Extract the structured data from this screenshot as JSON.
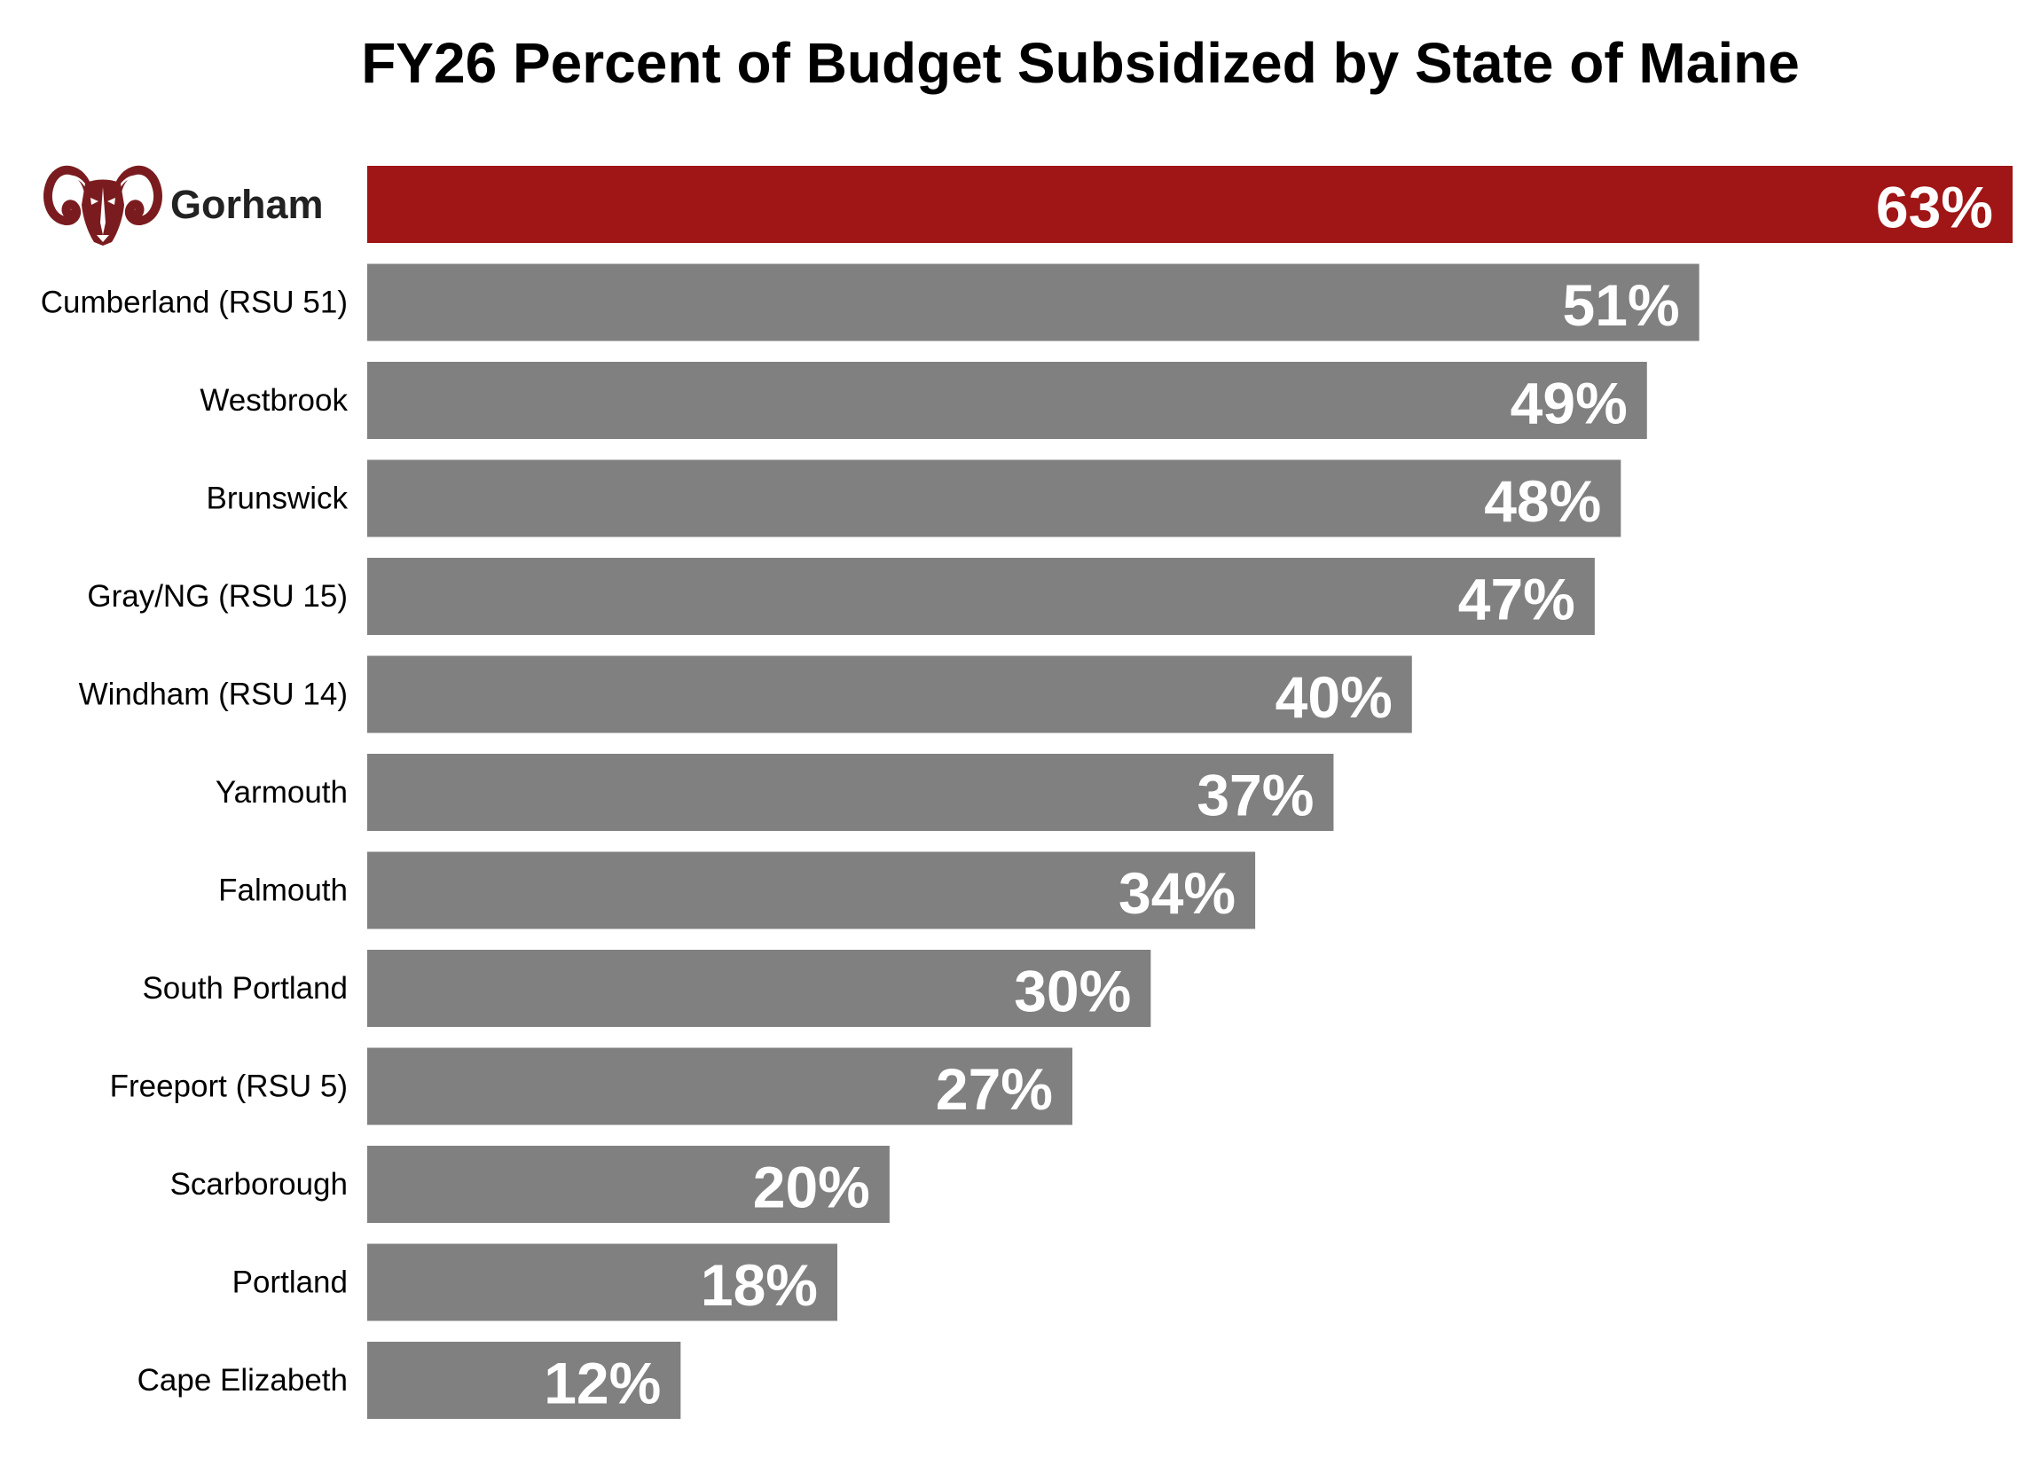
{
  "chart_data": {
    "type": "bar",
    "orientation": "horizontal",
    "title": "FY26 Percent of Budget Subsidized by State of Maine",
    "categories": [
      "Gorham",
      "Cumberland (RSU 51)",
      "Westbrook",
      "Brunswick",
      "Gray/NG (RSU 15)",
      "Windham (RSU 14)",
      "Yarmouth",
      "Falmouth",
      "South Portland",
      "Freeport (RSU 5)",
      "Scarborough",
      "Portland",
      "Cape Elizabeth"
    ],
    "values": [
      63,
      51,
      49,
      48,
      47,
      40,
      37,
      34,
      30,
      27,
      20,
      18,
      12
    ],
    "value_labels": [
      "63%",
      "51%",
      "49%",
      "48%",
      "47%",
      "40%",
      "37%",
      "34%",
      "30%",
      "27%",
      "20%",
      "18%",
      "12%"
    ],
    "unit": "%",
    "highlight_category": "Gorham",
    "highlight_icon": "ram-logo-icon",
    "xlim": [
      0,
      63
    ],
    "grid": false,
    "legend": "none",
    "colors": {
      "highlight_bar": "#A01515",
      "bar": "#808080",
      "value_label": "#FFFFFF",
      "logo": "#7A1C1F"
    }
  }
}
